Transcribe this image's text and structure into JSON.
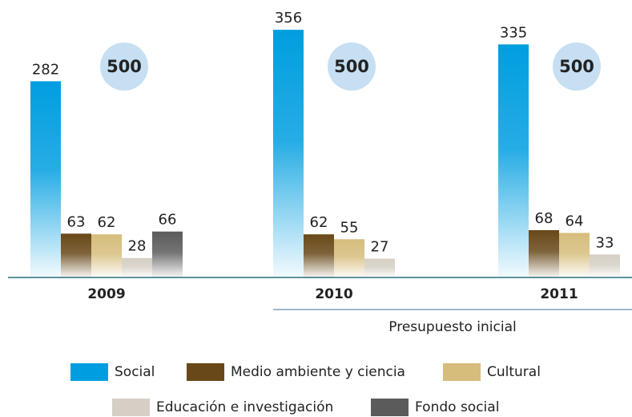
{
  "chart_data": {
    "type": "bar",
    "categories": [
      "2009",
      "2010",
      "2011"
    ],
    "series": [
      {
        "name": "Social",
        "color": "#009ee0",
        "values": [
          282,
          356,
          335
        ]
      },
      {
        "name": "Medio ambiente y ciencia",
        "color": "#684818",
        "values": [
          63,
          62,
          68
        ]
      },
      {
        "name": "Cultural",
        "color": "#d6bd7c",
        "values": [
          62,
          55,
          64
        ]
      },
      {
        "name": "Educación e investigación",
        "color": "#d5cfc5",
        "values": [
          28,
          27,
          33
        ]
      },
      {
        "name": "Fondo social",
        "color": "#5b5b5b",
        "values": [
          66,
          null,
          null
        ]
      }
    ],
    "totals": [
      500,
      500,
      500
    ],
    "annotation": "Presupuesto inicial",
    "ylim": [
      0,
      370
    ]
  }
}
